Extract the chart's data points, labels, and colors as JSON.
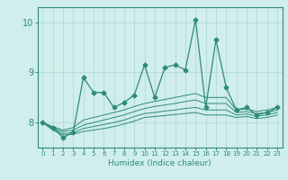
{
  "xlabel": "Humidex (Indice chaleur)",
  "ylabel": "",
  "x": [
    0,
    1,
    2,
    3,
    4,
    5,
    6,
    7,
    8,
    9,
    10,
    11,
    12,
    13,
    14,
    15,
    16,
    17,
    18,
    19,
    20,
    21,
    22,
    23
  ],
  "line_main": [
    8.0,
    7.9,
    7.7,
    7.8,
    8.9,
    8.6,
    8.6,
    8.3,
    8.4,
    8.55,
    9.15,
    8.5,
    9.1,
    9.15,
    9.05,
    10.05,
    8.3,
    9.65,
    8.7,
    8.25,
    8.3,
    8.15,
    8.2,
    8.3
  ],
  "line_p75": [
    8.0,
    7.92,
    7.85,
    7.9,
    8.05,
    8.1,
    8.15,
    8.2,
    8.25,
    8.32,
    8.38,
    8.42,
    8.46,
    8.5,
    8.54,
    8.58,
    8.5,
    8.5,
    8.5,
    8.25,
    8.27,
    8.22,
    8.25,
    8.3
  ],
  "line_p50": [
    8.0,
    7.9,
    7.82,
    7.85,
    7.95,
    8.0,
    8.05,
    8.1,
    8.15,
    8.22,
    8.28,
    8.32,
    8.35,
    8.38,
    8.42,
    8.45,
    8.38,
    8.38,
    8.38,
    8.2,
    8.22,
    8.18,
    8.2,
    8.25
  ],
  "line_p25": [
    8.0,
    7.88,
    7.78,
    7.8,
    7.88,
    7.92,
    7.96,
    8.0,
    8.05,
    8.12,
    8.18,
    8.2,
    8.23,
    8.25,
    8.28,
    8.3,
    8.25,
    8.25,
    8.25,
    8.15,
    8.17,
    8.13,
    8.15,
    8.2
  ],
  "line_p10": [
    8.0,
    7.85,
    7.75,
    7.77,
    7.82,
    7.85,
    7.88,
    7.92,
    7.97,
    8.03,
    8.1,
    8.12,
    8.14,
    8.16,
    8.18,
    8.2,
    8.15,
    8.15,
    8.15,
    8.1,
    8.12,
    8.08,
    8.1,
    8.15
  ],
  "color": "#2e8b7a",
  "bg_color": "#d0eeeb",
  "grid_color": "#b8dcd8",
  "ylim": [
    7.5,
    10.3
  ],
  "yticks": [
    8,
    9,
    10
  ],
  "xlim": [
    -0.5,
    23.5
  ]
}
